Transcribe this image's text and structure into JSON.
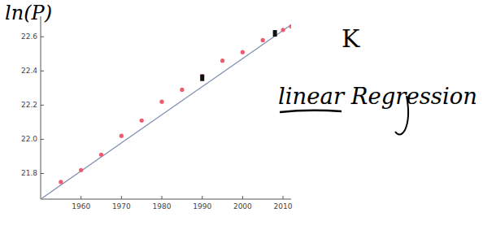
{
  "chart_data": {
    "type": "scatter",
    "y_label": "ln(P)",
    "annotations": [
      "K",
      "linear Regression"
    ],
    "xlim": [
      1950,
      2012
    ],
    "ylim": [
      21.65,
      22.72
    ],
    "xticks": [
      1960,
      1970,
      1980,
      1990,
      2000,
      2010
    ],
    "yticks": [
      21.8,
      {
        "value": 22,
        "label": "22.0"
      },
      22.2,
      22.4,
      22.6
    ],
    "grid": false,
    "series": [
      {
        "type": "scatter",
        "color": "#f05a6e",
        "marker": "circle",
        "x": [
          1955,
          1960,
          1965,
          1970,
          1975,
          1980,
          1985,
          1990,
          1995,
          2000,
          2005,
          2010,
          2012
        ],
        "values": [
          21.75,
          21.82,
          21.91,
          22.02,
          22.11,
          22.22,
          22.29,
          22.37,
          22.46,
          22.51,
          22.58,
          22.64,
          22.66
        ]
      },
      {
        "type": "scatter",
        "color": "#111111",
        "marker": "square",
        "x": [
          1990,
          2008
        ],
        "values": [
          22.36,
          22.62
        ]
      },
      {
        "type": "line",
        "color": "#7f8fb0",
        "line_style": "solid",
        "x": [
          1950,
          2012
        ],
        "values": [
          21.65,
          22.67
        ]
      }
    ]
  }
}
